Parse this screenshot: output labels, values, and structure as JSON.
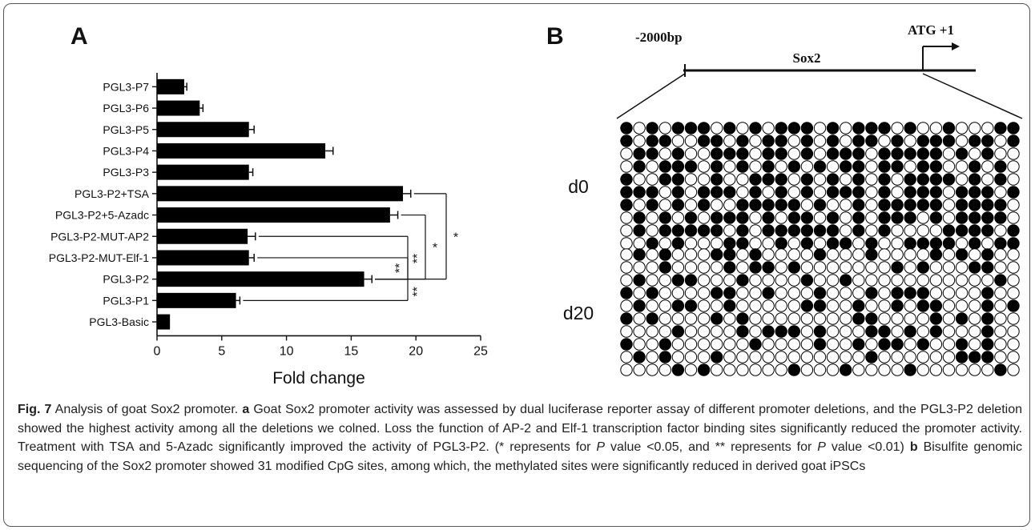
{
  "panel_a": {
    "letter": "A",
    "chart_data": {
      "type": "bar",
      "orientation": "horizontal",
      "categories": [
        "PGL3-P7",
        "PGL3-P6",
        "PGL3-P5",
        "PGL3-P4",
        "PGL3-P3",
        "PGL3-P2+TSA",
        "PGL3-P2+5-Azadc",
        "PGL3-P2-MUT-AP2",
        "PGL3-P2-MUT-Elf-1",
        "PGL3-P2",
        "PGL3-P1",
        "PGL3-Basic"
      ],
      "values": [
        2.1,
        3.3,
        7.1,
        13.0,
        7.1,
        19.0,
        18.0,
        7.0,
        7.1,
        16.0,
        6.1,
        1.0
      ],
      "errors": [
        0.2,
        0.25,
        0.4,
        0.6,
        0.3,
        0.6,
        0.6,
        0.6,
        0.4,
        0.6,
        0.3,
        0.0
      ],
      "xlabel": "Fold change",
      "ylabel": "",
      "xlim": [
        0,
        25
      ],
      "xticks": [
        0,
        5,
        10,
        15,
        20,
        25
      ],
      "bar_color": "#000000",
      "significance": [
        {
          "from": "PGL3-P2+TSA",
          "to": "PGL3-P2",
          "label": "*"
        },
        {
          "from": "PGL3-P2+5-Azadc",
          "to": "PGL3-P2",
          "label": "*"
        },
        {
          "from": "PGL3-P2-MUT-AP2",
          "to": "PGL3-P2",
          "label": "**"
        },
        {
          "from": "PGL3-P2-MUT-Elf-1",
          "to": "PGL3-P2",
          "label": "**"
        },
        {
          "from": "PGL3-P1",
          "to": "PGL3-P2",
          "label": "**"
        }
      ]
    }
  },
  "panel_b": {
    "letter": "B",
    "upstream_label": "-2000bp",
    "gene_label": "Sox2",
    "tss_label": "ATG +1",
    "groups": [
      {
        "label": "d0",
        "rows": [
          "1010111010101110101110100100011",
          "1011001101011010101101011101101",
          "0110100111011010111011111010100",
          "0101110101010101011011011001010",
          "1001100100111010101010111101010",
          "1110101110101010111010111011101",
          "1010101001111101001011111011110",
          "0101010111010110101011101011110",
          "0101111101011111101010000111101",
          "0010100011001010110100111101011"
        ]
      },
      {
        "label": "d20",
        "rows": [
          "0101000110100001000100001010100",
          "0001000010110100000001010001100",
          "0100110001000010010000000000010",
          "1010000110010001000101110000100",
          "0100110010000011001001011000101",
          "1010000101000000001100001010100",
          "0000100001011101000110101000100",
          "1001000000100001001011010010100",
          "0101000100000000000100000011100",
          "0000101000000100010000100000010"
        ]
      }
    ]
  },
  "caption": {
    "fig_label": "Fig. 7",
    "title": " Analysis of goat Sox2 promoter. ",
    "a_label": "a",
    "a_text": " Goat Sox2 promoter activity was assessed by dual luciferase reporter assay of different promoter deletions, and the PGL3-P2 deletion showed the highest activity among all the deletions we colned. Loss the function of AP-2 and Elf-1 transcription factor binding sites significantly reduced the promoter activity. Treatment with TSA and 5-Azadc significantly improved the activity of PGL3-P2. (* represents for ",
    "p1": "P",
    "mid1": " value <0.05, and ** represents for ",
    "p2": "P",
    "mid2": " value <0.01) ",
    "b_label": "b",
    "b_text": " Bisulfite genomic sequencing of the Sox2 promoter showed 31 modified CpG sites, among which, the methylated sites were significantly reduced in derived goat iPSCs"
  }
}
